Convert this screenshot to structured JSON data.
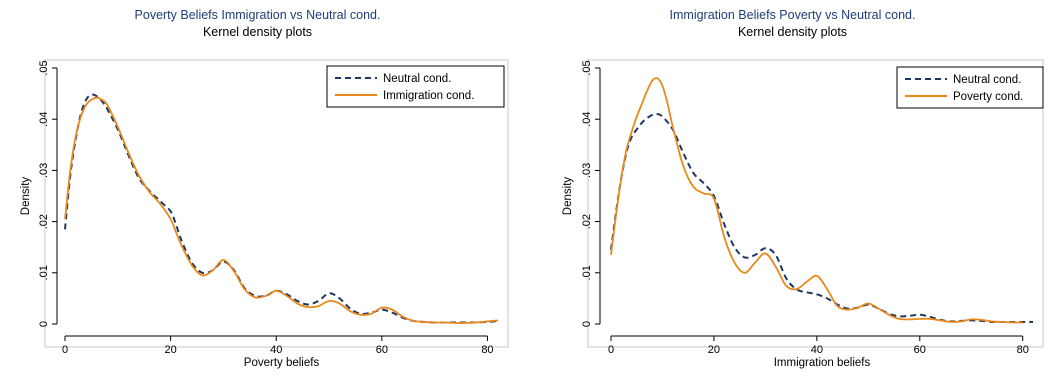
{
  "chart_data": [
    {
      "type": "line",
      "title": "Poverty Beliefs Immigration vs Neutral cond.",
      "subtitle": "Kernel density plots",
      "xlabel": "Poverty beliefs",
      "ylabel": "Density",
      "xlim": [
        0,
        82
      ],
      "ylim": [
        0,
        0.05
      ],
      "xticks": [
        0,
        20,
        40,
        60,
        80
      ],
      "yticks": [
        0,
        0.01,
        0.02,
        0.03,
        0.04,
        0.05
      ],
      "xtick_labels": [
        "0",
        "20",
        "40",
        "60",
        "80"
      ],
      "ytick_labels": [
        "0",
        ".01",
        ".02",
        ".03",
        ".04",
        ".05"
      ],
      "grid": false,
      "legend_position": "top-right",
      "series": [
        {
          "name": "Neutral cond.",
          "color": "#1f3760",
          "dash": true,
          "x": [
            0,
            1,
            2,
            3,
            4,
            5,
            6,
            7,
            8,
            10,
            12,
            14,
            16,
            18,
            20,
            21,
            22,
            24,
            26,
            28,
            30,
            32,
            34,
            36,
            38,
            40,
            42,
            44,
            46,
            48,
            50,
            52,
            54,
            56,
            58,
            60,
            62,
            64,
            66,
            68,
            70,
            72,
            74,
            76,
            78,
            80,
            82
          ],
          "y": [
            0.0185,
            0.029,
            0.036,
            0.041,
            0.0438,
            0.0448,
            0.0445,
            0.0435,
            0.042,
            0.038,
            0.033,
            0.0285,
            0.026,
            0.024,
            0.022,
            0.0195,
            0.0165,
            0.012,
            0.01,
            0.0105,
            0.0122,
            0.0105,
            0.007,
            0.0055,
            0.0055,
            0.0065,
            0.0058,
            0.0045,
            0.0038,
            0.0045,
            0.006,
            0.005,
            0.003,
            0.002,
            0.0022,
            0.0028,
            0.0022,
            0.0012,
            0.0006,
            0.0004,
            0.0003,
            0.0003,
            0.0003,
            0.0003,
            0.0003,
            0.0004,
            0.0006
          ]
        },
        {
          "name": "Immigration cond.",
          "color": "#e8891d",
          "dash": false,
          "x": [
            0,
            1,
            2,
            3,
            4,
            5,
            6,
            7,
            8,
            10,
            12,
            14,
            16,
            18,
            20,
            21,
            22,
            24,
            26,
            28,
            30,
            32,
            34,
            36,
            38,
            40,
            42,
            44,
            46,
            48,
            50,
            52,
            54,
            56,
            58,
            60,
            62,
            64,
            66,
            68,
            70,
            72,
            74,
            76,
            78,
            80,
            82
          ],
          "y": [
            0.0205,
            0.03,
            0.0365,
            0.0405,
            0.0428,
            0.0438,
            0.0442,
            0.0438,
            0.0428,
            0.0385,
            0.0335,
            0.029,
            0.0258,
            0.0235,
            0.0205,
            0.018,
            0.0155,
            0.0115,
            0.0095,
            0.0105,
            0.0125,
            0.0103,
            0.0068,
            0.0052,
            0.0055,
            0.0065,
            0.0055,
            0.004,
            0.0033,
            0.0035,
            0.0045,
            0.004,
            0.0025,
            0.0018,
            0.002,
            0.0032,
            0.0028,
            0.0014,
            0.0006,
            0.0004,
            0.0003,
            0.0003,
            0.0002,
            0.0002,
            0.0003,
            0.0005,
            0.0007
          ]
        }
      ]
    },
    {
      "type": "line",
      "title": "Immigration Beliefs Poverty vs Neutral cond.",
      "subtitle": "Kernel density plots",
      "xlabel": "Immigration beliefs",
      "ylabel": "Density",
      "xlim": [
        0,
        82
      ],
      "ylim": [
        0,
        0.05
      ],
      "xticks": [
        0,
        20,
        40,
        60,
        80
      ],
      "yticks": [
        0,
        0.01,
        0.02,
        0.03,
        0.04,
        0.05
      ],
      "xtick_labels": [
        "0",
        "20",
        "40",
        "60",
        "80"
      ],
      "ytick_labels": [
        "0",
        ".01",
        ".02",
        ".03",
        ".04",
        ".05"
      ],
      "grid": false,
      "legend_position": "top-right",
      "series": [
        {
          "name": "Neutral cond.",
          "color": "#1f3760",
          "dash": true,
          "x": [
            0,
            1,
            2,
            3,
            4,
            5,
            6,
            7,
            8,
            9,
            10,
            12,
            14,
            16,
            18,
            20,
            22,
            24,
            26,
            28,
            30,
            32,
            34,
            36,
            38,
            40,
            42,
            44,
            46,
            48,
            50,
            52,
            54,
            56,
            58,
            60,
            62,
            64,
            66,
            68,
            70,
            72,
            74,
            76,
            78,
            80,
            82
          ],
          "y": [
            0.0145,
            0.022,
            0.0285,
            0.0335,
            0.0365,
            0.038,
            0.0393,
            0.0402,
            0.0408,
            0.041,
            0.0405,
            0.038,
            0.0335,
            0.0295,
            0.0275,
            0.025,
            0.0195,
            0.015,
            0.013,
            0.0135,
            0.0148,
            0.0135,
            0.009,
            0.0068,
            0.0062,
            0.0058,
            0.005,
            0.0038,
            0.003,
            0.0032,
            0.0038,
            0.003,
            0.002,
            0.0015,
            0.0016,
            0.0018,
            0.0014,
            0.0008,
            0.0005,
            0.0006,
            0.0007,
            0.0006,
            0.0004,
            0.0004,
            0.0004,
            0.0004,
            0.0004
          ]
        },
        {
          "name": "Poverty cond.",
          "color": "#e8891d",
          "dash": false,
          "x": [
            0,
            1,
            2,
            3,
            4,
            5,
            6,
            7,
            8,
            9,
            10,
            11,
            12,
            14,
            16,
            18,
            20,
            22,
            24,
            26,
            28,
            30,
            32,
            34,
            36,
            38,
            40,
            42,
            44,
            46,
            48,
            50,
            52,
            54,
            56,
            58,
            60,
            62,
            64,
            66,
            68,
            70,
            72,
            74,
            76,
            78,
            80
          ],
          "y": [
            0.0135,
            0.0215,
            0.0285,
            0.034,
            0.0375,
            0.0405,
            0.043,
            0.0455,
            0.0475,
            0.048,
            0.0465,
            0.043,
            0.0385,
            0.031,
            0.0268,
            0.0255,
            0.0245,
            0.017,
            0.012,
            0.01,
            0.012,
            0.0138,
            0.0112,
            0.0075,
            0.0068,
            0.0082,
            0.0094,
            0.0068,
            0.0035,
            0.0028,
            0.0032,
            0.004,
            0.003,
            0.0018,
            0.001,
            0.0009,
            0.001,
            0.001,
            0.0007,
            0.0004,
            0.0005,
            0.0009,
            0.0008,
            0.0005,
            0.0004,
            0.0003,
            0.0003
          ]
        }
      ]
    }
  ]
}
